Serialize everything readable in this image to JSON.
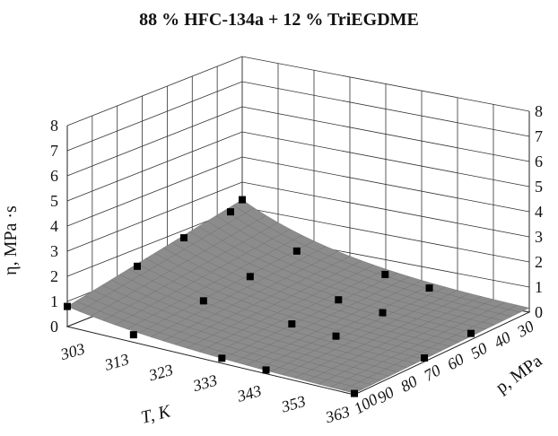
{
  "chart_data": {
    "type": "surface3d",
    "title": "88 % HFC-134a + 12 % TriEGDME",
    "xlabel": "T, K",
    "ylabel": "p, MPa",
    "zlabel": "η, MPa ·s",
    "x_ticks": [
      "303",
      "313",
      "323",
      "333",
      "343",
      "353",
      "363"
    ],
    "y_ticks": [
      "30",
      "40",
      "50",
      "60",
      "70",
      "80",
      "90",
      "100"
    ],
    "z_ticks": [
      "0",
      "1",
      "2",
      "3",
      "4",
      "5",
      "6",
      "7",
      "8"
    ],
    "xlim": [
      298,
      363
    ],
    "ylim": [
      25,
      100
    ],
    "zlim": [
      0,
      8
    ],
    "surface_color": "#8c8c8c",
    "point_color": "#000000",
    "points": [
      {
        "T": 298,
        "p": 100,
        "eta": 0.8
      },
      {
        "T": 298,
        "p": 70,
        "eta": 1.3
      },
      {
        "T": 298,
        "p": 50,
        "eta": 1.7
      },
      {
        "T": 298,
        "p": 30,
        "eta": 2.0
      },
      {
        "T": 298,
        "p": 25,
        "eta": 2.3
      },
      {
        "T": 313,
        "p": 100,
        "eta": 0.3
      },
      {
        "T": 313,
        "p": 70,
        "eta": 0.5
      },
      {
        "T": 313,
        "p": 50,
        "eta": 0.7
      },
      {
        "T": 313,
        "p": 30,
        "eta": 0.95
      },
      {
        "T": 333,
        "p": 100,
        "eta": 0.2
      },
      {
        "T": 333,
        "p": 70,
        "eta": 0.35
      },
      {
        "T": 333,
        "p": 50,
        "eta": 0.5
      },
      {
        "T": 333,
        "p": 30,
        "eta": 0.7
      },
      {
        "T": 343,
        "p": 100,
        "eta": 0.15
      },
      {
        "T": 343,
        "p": 70,
        "eta": 0.25
      },
      {
        "T": 343,
        "p": 50,
        "eta": 0.35
      },
      {
        "T": 343,
        "p": 30,
        "eta": 0.5
      },
      {
        "T": 363,
        "p": 100,
        "eta": 0.05
      },
      {
        "T": 363,
        "p": 70,
        "eta": 0.15
      },
      {
        "T": 363,
        "p": 50,
        "eta": 0.25
      }
    ]
  }
}
